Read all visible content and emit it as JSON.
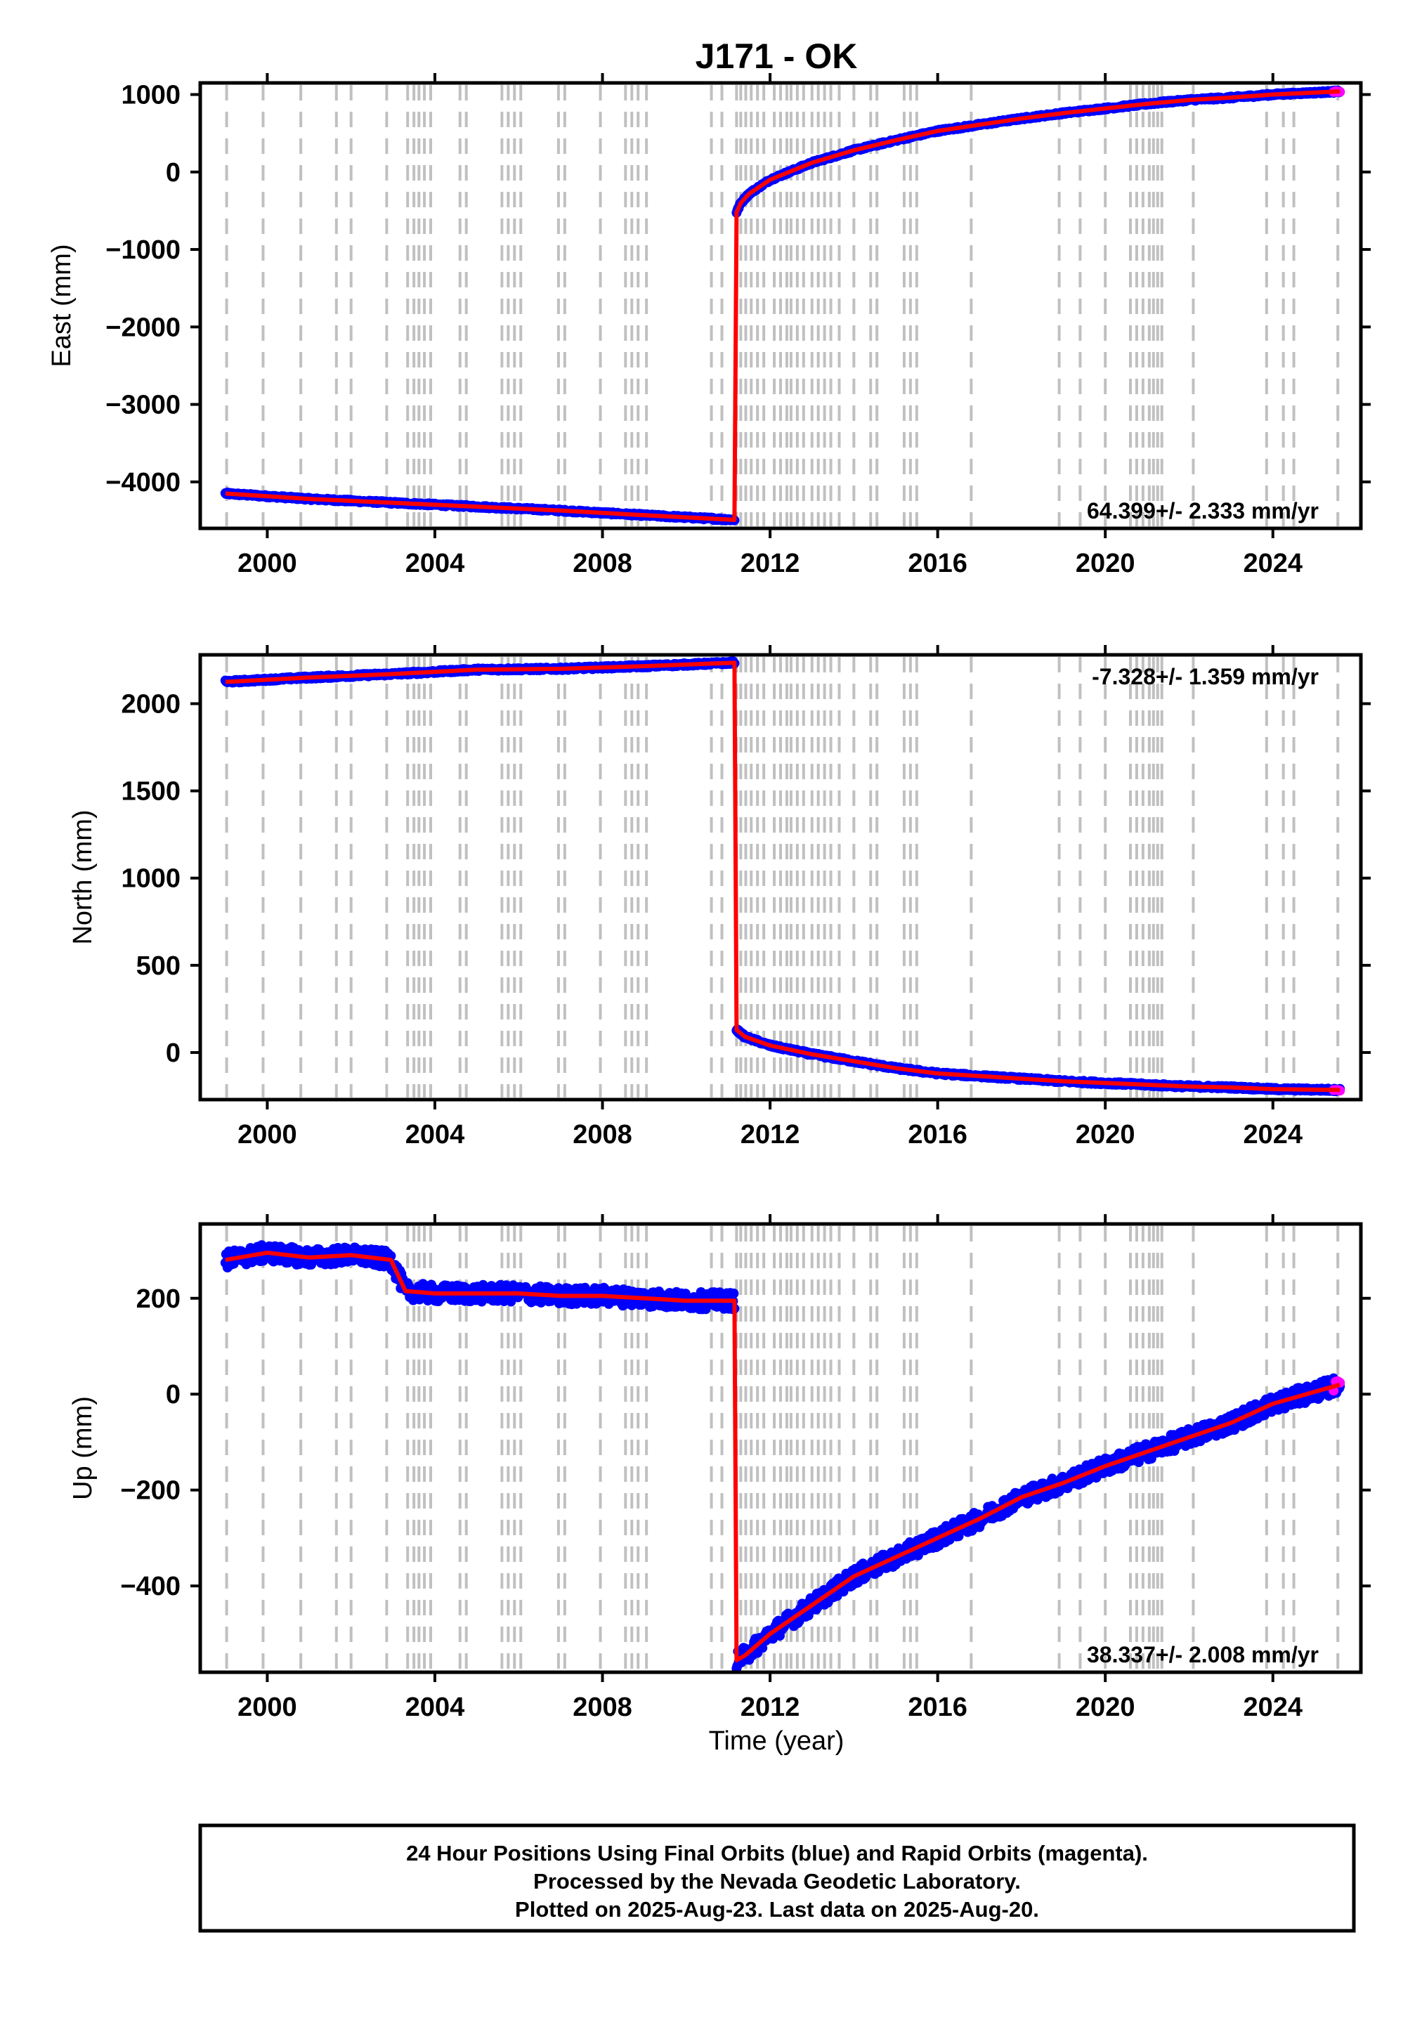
{
  "title": "J171 - OK",
  "x_axis": {
    "label": "Time (year)",
    "ticks": [
      2000,
      2004,
      2008,
      2012,
      2016,
      2020,
      2024
    ],
    "range": [
      1998.4,
      2026.1
    ]
  },
  "colors": {
    "final_orbits": "#0000ff",
    "rapid_orbits": "#ff00ff",
    "model": "#ff0000",
    "event_lines": "#c0c0c0"
  },
  "event_lines": [
    1999.03,
    1999.9,
    2000.8,
    2001.65,
    2002.0,
    2002.85,
    2003.35,
    2003.5,
    2003.62,
    2003.75,
    2003.9,
    2004.6,
    2004.75,
    2005.6,
    2005.75,
    2005.9,
    2006.05,
    2006.95,
    2007.1,
    2007.95,
    2008.55,
    2008.7,
    2008.85,
    2009.05,
    2010.6,
    2010.85,
    2011.2,
    2011.3,
    2011.42,
    2011.55,
    2011.7,
    2011.85,
    2012.1,
    2012.25,
    2012.4,
    2012.5,
    2012.65,
    2012.8,
    2013.0,
    2013.15,
    2013.3,
    2013.45,
    2013.65,
    2014.0,
    2014.4,
    2014.55,
    2015.2,
    2015.35,
    2015.5,
    2016.8,
    2018.9,
    2019.4,
    2020.0,
    2020.6,
    2020.75,
    2020.9,
    2021.05,
    2021.15,
    2021.25,
    2021.35,
    2022.1,
    2023.85,
    2024.25,
    2024.5,
    2025.55
  ],
  "chart_data": [
    {
      "type": "scatter",
      "component": "East",
      "ylabel": "East (mm)",
      "ylim": [
        -4600,
        1150
      ],
      "yticks": [
        1000,
        0,
        -1000,
        -2000,
        -3000,
        -4000
      ],
      "rate_text": "64.399+/- 2.333 mm/yr",
      "rate_position": "bottom-right",
      "grid": false,
      "event_year": 2011.19,
      "before_event": {
        "x": [
          1999.0,
          2001.0,
          2003.0,
          2005.0,
          2007.0,
          2009.0,
          2011.15
        ],
        "y": [
          -4150,
          -4220,
          -4270,
          -4320,
          -4370,
          -4430,
          -4490
        ]
      },
      "after_event": {
        "x": [
          2011.2,
          2011.3,
          2011.5,
          2012.0,
          2013.0,
          2014.0,
          2015.0,
          2016.0,
          2017.0,
          2018.0,
          2019.0,
          2020.0,
          2021.0,
          2022.0,
          2023.0,
          2024.0,
          2025.6
        ],
        "y": [
          -520,
          -400,
          -280,
          -100,
          120,
          280,
          410,
          530,
          610,
          690,
          760,
          820,
          880,
          930,
          960,
          1000,
          1040
        ]
      },
      "scatter_amplitude": 15,
      "series": [
        {
          "name": "Final Orbits",
          "color": "#0000ff"
        },
        {
          "name": "Rapid Orbits",
          "color": "#ff00ff",
          "x_start": 2025.45
        },
        {
          "name": "Model",
          "color": "#ff0000"
        }
      ]
    },
    {
      "type": "scatter",
      "component": "North",
      "ylabel": "North (mm)",
      "ylim": [
        -270,
        2280
      ],
      "yticks": [
        2000,
        1500,
        1000,
        500,
        0
      ],
      "rate_text": "-7.328+/- 1.359 mm/yr",
      "rate_position": "top-right",
      "grid": false,
      "event_year": 2011.19,
      "before_event": {
        "x": [
          1999.0,
          2001.0,
          2003.0,
          2005.0,
          2007.0,
          2009.0,
          2011.15
        ],
        "y": [
          2125,
          2150,
          2170,
          2195,
          2200,
          2215,
          2235
        ]
      },
      "after_event": {
        "x": [
          2011.2,
          2011.4,
          2012.0,
          2013.0,
          2014.0,
          2015.0,
          2016.0,
          2017.0,
          2018.0,
          2019.0,
          2020.0,
          2021.0,
          2022.0,
          2023.0,
          2024.0,
          2025.6
        ],
        "y": [
          130,
          90,
          40,
          -10,
          -50,
          -90,
          -120,
          -135,
          -150,
          -165,
          -175,
          -185,
          -195,
          -200,
          -210,
          -215
        ]
      },
      "scatter_amplitude": 8,
      "series": [
        {
          "name": "Final Orbits",
          "color": "#0000ff"
        },
        {
          "name": "Rapid Orbits",
          "color": "#ff00ff",
          "x_start": 2025.45
        },
        {
          "name": "Model",
          "color": "#ff0000"
        }
      ]
    },
    {
      "type": "scatter",
      "component": "Up",
      "ylabel": "Up (mm)",
      "ylim": [
        -580,
        355
      ],
      "yticks": [
        200,
        0,
        -200,
        -400
      ],
      "rate_text": "38.337+/- 2.008 mm/yr",
      "rate_position": "bottom-right",
      "grid": false,
      "event_year": 2011.19,
      "before_event": {
        "x": [
          1999.0,
          2000.0,
          2001.0,
          2002.0,
          2002.95,
          2003.3,
          2004.0,
          2005.0,
          2006.0,
          2007.0,
          2008.0,
          2009.0,
          2010.0,
          2011.15
        ],
        "y": [
          280,
          295,
          285,
          290,
          280,
          215,
          210,
          210,
          210,
          205,
          205,
          200,
          195,
          195
        ]
      },
      "after_event": {
        "x": [
          2011.2,
          2011.4,
          2012.0,
          2013.0,
          2014.0,
          2015.0,
          2016.0,
          2017.0,
          2018.0,
          2019.0,
          2020.0,
          2021.0,
          2022.0,
          2023.0,
          2024.0,
          2025.6
        ],
        "y": [
          -555,
          -545,
          -500,
          -440,
          -380,
          -340,
          -300,
          -260,
          -215,
          -185,
          -150,
          -120,
          -90,
          -60,
          -20,
          20
        ]
      },
      "scatter_amplitude": 18,
      "series": [
        {
          "name": "Final Orbits",
          "color": "#0000ff"
        },
        {
          "name": "Rapid Orbits",
          "color": "#ff00ff",
          "x_start": 2025.45
        },
        {
          "name": "Model",
          "color": "#ff0000"
        }
      ]
    }
  ],
  "footer": {
    "line1": "24 Hour Positions Using Final Orbits (blue) and Rapid Orbits (magenta).",
    "line2": "Processed by the Nevada Geodetic Laboratory.",
    "line3": "Plotted on 2025-Aug-23. Last data on 2025-Aug-20."
  }
}
